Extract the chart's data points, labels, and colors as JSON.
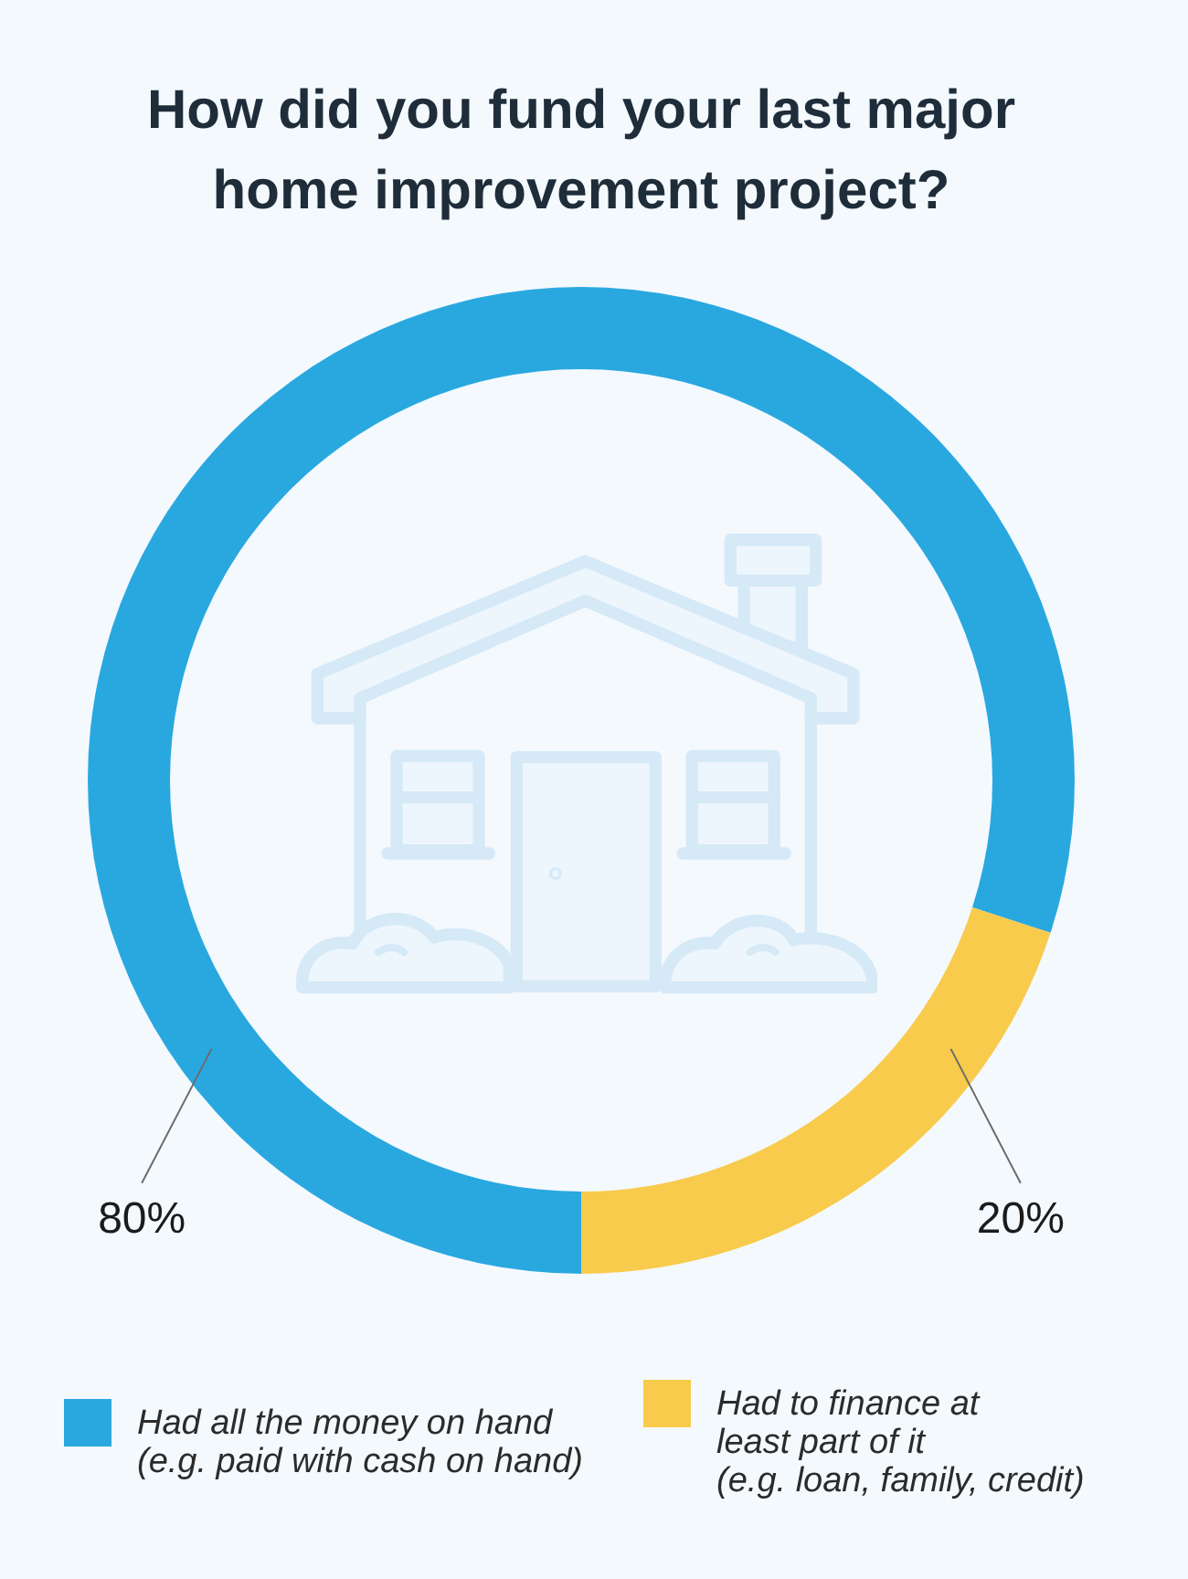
{
  "chart_data": {
    "type": "donut",
    "title": "How did you fund your last major home improvement project?",
    "categories": [
      "Had all the money on hand (e.g. paid with cash on hand)",
      "Had to finance at least part of it (e.g. loan, family, credit)"
    ],
    "values": [
      80,
      20
    ],
    "colors": [
      "#29a8e0",
      "#f8cb4c"
    ],
    "value_labels": [
      "80%",
      "20%"
    ],
    "legend": "bottom"
  }
}
